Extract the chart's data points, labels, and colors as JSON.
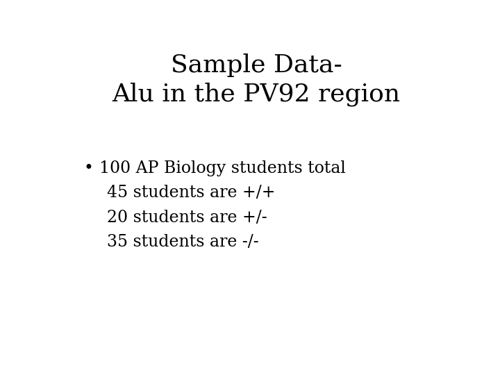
{
  "title_line1": "Sample Data-",
  "title_line2": "Alu in the PV92 region",
  "bullet_text": "100 AP Biology students total",
  "sub_lines": [
    "45 students are +/+",
    "20 students are +/-",
    "35 students are -/-"
  ],
  "background_color": "#ffffff",
  "text_color": "#000000",
  "title_fontsize": 26,
  "body_fontsize": 17,
  "font_family": "DejaVu Serif"
}
